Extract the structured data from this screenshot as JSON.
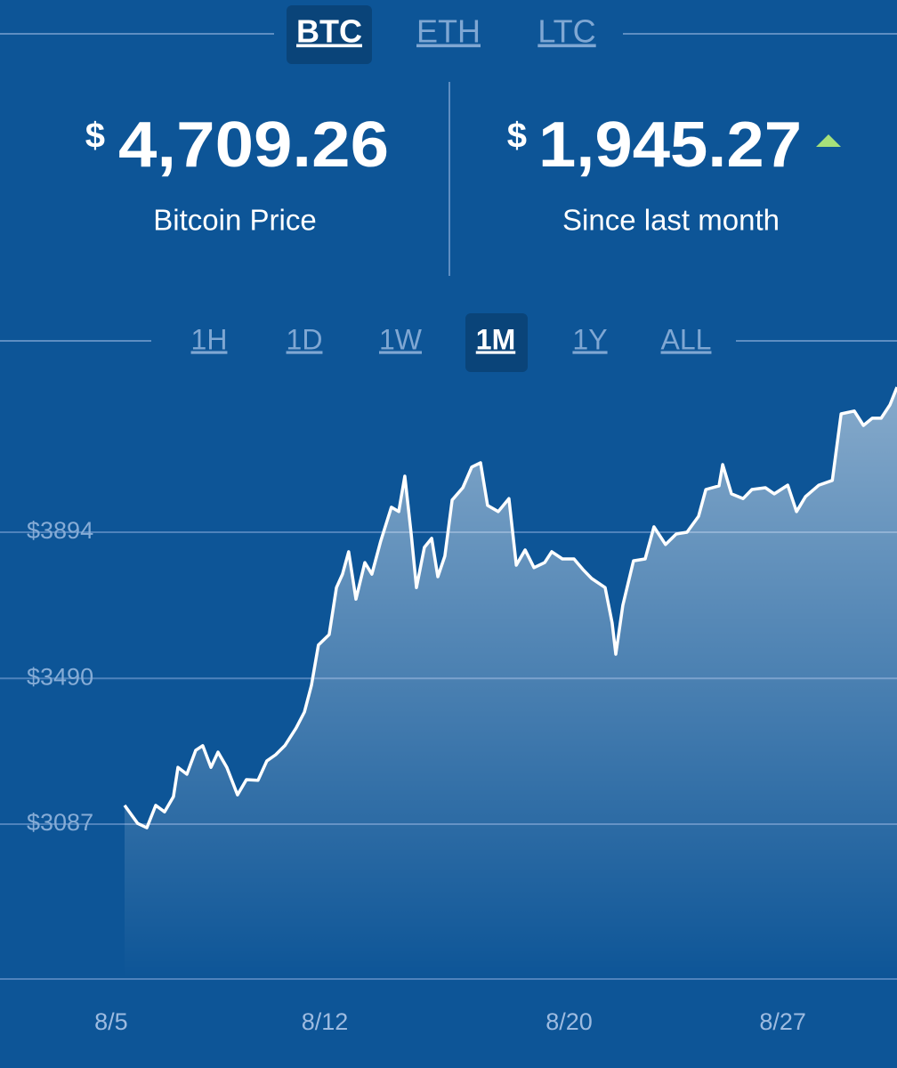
{
  "tabs": {
    "items": [
      "BTC",
      "ETH",
      "LTC"
    ],
    "selected": 0
  },
  "stats": {
    "price": {
      "currency": "$",
      "value": "4,709.26",
      "label": "Bitcoin Price"
    },
    "change": {
      "currency": "$",
      "value": "1,945.27",
      "label": "Since last month"
    }
  },
  "ranges": {
    "items": [
      "1H",
      "1D",
      "1W",
      "1M",
      "1Y",
      "ALL"
    ],
    "selected": 3
  },
  "chart_data": {
    "type": "line",
    "area": true,
    "color": "#ffffff",
    "grid": true,
    "x": [
      5.44,
      5.87,
      6.17,
      6.46,
      6.75,
      7.04,
      7.19,
      7.48,
      7.77,
      8.0,
      8.27,
      8.5,
      8.79,
      9.14,
      9.43,
      9.81,
      10.1,
      10.39,
      10.69,
      11.06,
      11.33,
      11.56,
      11.79,
      12.14,
      12.38,
      12.58,
      12.78,
      13.02,
      13.31,
      13.54,
      13.83,
      14.18,
      14.42,
      14.62,
      14.83,
      15.0,
      15.26,
      15.5,
      15.7,
      15.93,
      16.17,
      16.52,
      16.81,
      17.1,
      17.33,
      17.68,
      18.03,
      18.27,
      18.56,
      18.85,
      19.2,
      19.43,
      19.78,
      20.16,
      20.45,
      20.74,
      21.18,
      21.41,
      21.53,
      21.76,
      22.11,
      22.49,
      22.78,
      23.16,
      23.51,
      23.86,
      24.24,
      24.48,
      24.91,
      25.03,
      25.32,
      25.7,
      25.99,
      26.43,
      26.72,
      27.16,
      27.45,
      27.74,
      28.18,
      28.62,
      28.91,
      29.34,
      29.64,
      29.93,
      30.22,
      30.51,
      30.74
    ],
    "values": [
      3139,
      3089,
      3077,
      3139,
      3121,
      3163,
      3244,
      3225,
      3291,
      3304,
      3244,
      3286,
      3244,
      3168,
      3210,
      3208,
      3262,
      3279,
      3304,
      3353,
      3397,
      3471,
      3582,
      3611,
      3741,
      3778,
      3840,
      3709,
      3810,
      3778,
      3869,
      3963,
      3951,
      4049,
      3889,
      3741,
      3852,
      3877,
      3771,
      3828,
      3983,
      4017,
      4074,
      4086,
      3968,
      3951,
      3987,
      3803,
      3845,
      3796,
      3810,
      3840,
      3820,
      3820,
      3791,
      3766,
      3741,
      3643,
      3557,
      3692,
      3815,
      3820,
      3909,
      3860,
      3889,
      3894,
      3938,
      4012,
      4022,
      4081,
      4000,
      3987,
      4012,
      4017,
      4000,
      4024,
      3951,
      3992,
      4024,
      4037,
      4221,
      4229,
      4189,
      4209,
      4209,
      4246,
      4295
    ],
    "xlim": [
      1.36,
      30.74
    ],
    "xticks": [
      {
        "value": 5,
        "label": "8/5"
      },
      {
        "value": 12,
        "label": "8/12"
      },
      {
        "value": 20,
        "label": "8/20"
      },
      {
        "value": 27,
        "label": "8/27"
      }
    ],
    "ylim": [
      2659,
      4381
    ],
    "yticks": [
      {
        "value": 3087,
        "label": "$3087"
      },
      {
        "value": 3490,
        "label": "$3490"
      },
      {
        "value": 3894,
        "label": "$3894"
      }
    ]
  }
}
